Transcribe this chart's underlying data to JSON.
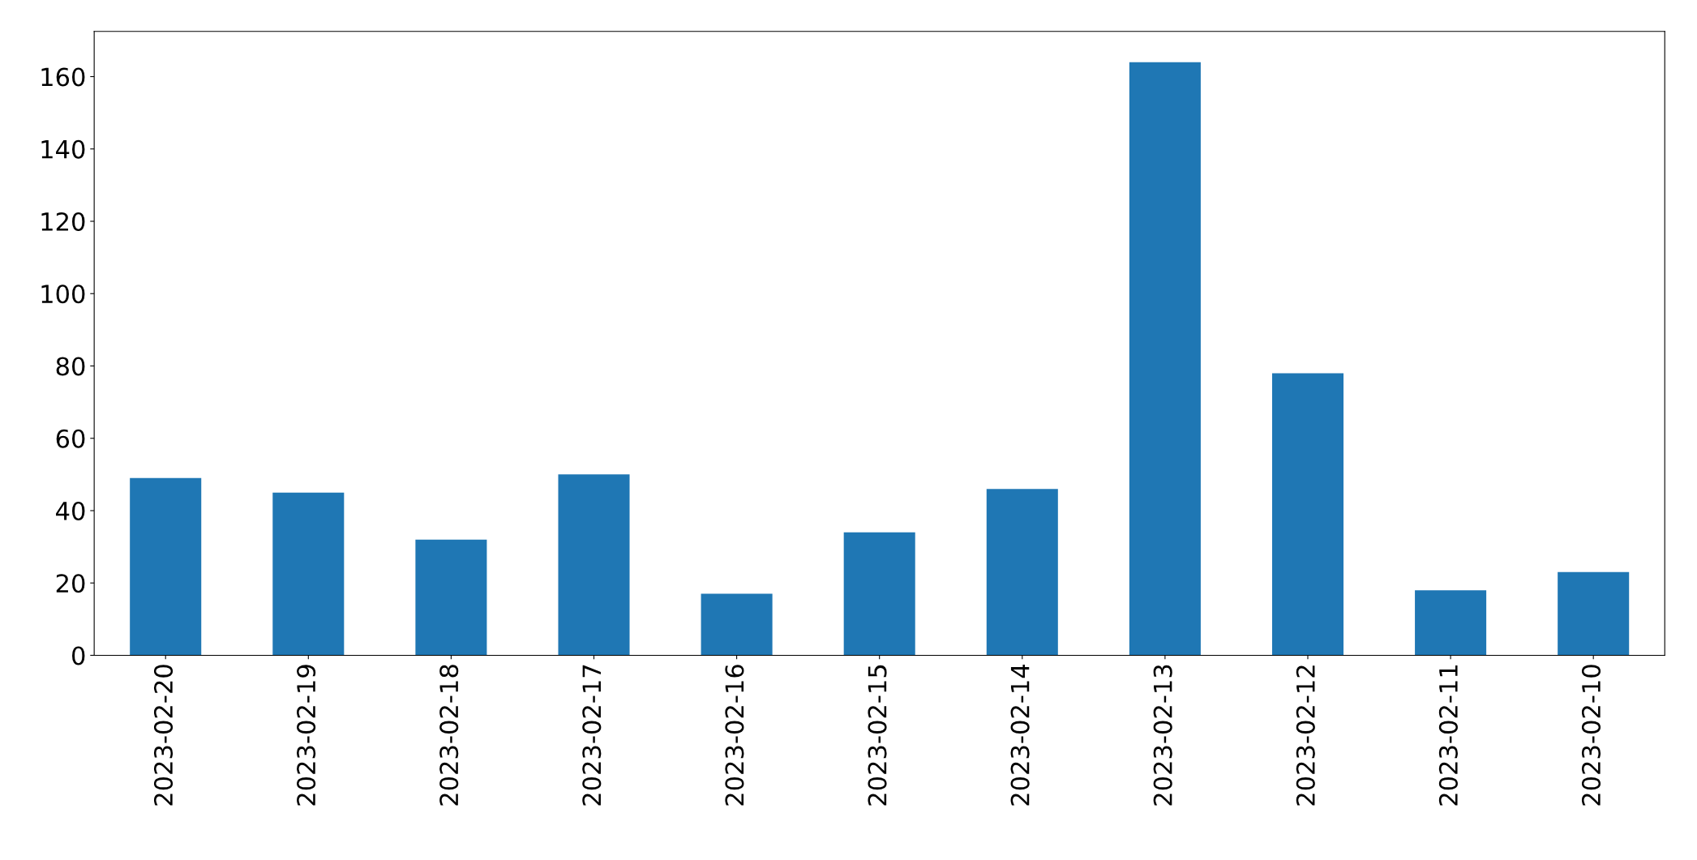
{
  "chart_data": {
    "type": "bar",
    "categories": [
      "2023-02-20",
      "2023-02-19",
      "2023-02-18",
      "2023-02-17",
      "2023-02-16",
      "2023-02-15",
      "2023-02-14",
      "2023-02-13",
      "2023-02-12",
      "2023-02-11",
      "2023-02-10"
    ],
    "values": [
      49,
      45,
      32,
      50,
      17,
      34,
      46,
      164,
      78,
      18,
      23
    ],
    "color": "#1f77b4",
    "ylim": [
      0,
      172.5
    ],
    "yticks": [
      0,
      20,
      40,
      60,
      80,
      100,
      120,
      140,
      160
    ],
    "grid": false,
    "legend": false
  }
}
